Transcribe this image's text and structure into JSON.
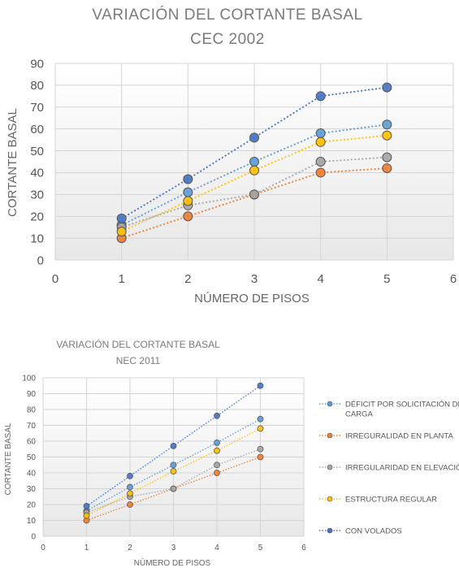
{
  "chart_data": [
    {
      "type": "line",
      "title": "VARIACIÓN DEL CORTANTE BASAL",
      "subtitle": "CEC 2002",
      "xlabel": "NÚMERO DE PISOS",
      "ylabel": "CORTANTE BASAL",
      "xlim": [
        0,
        6
      ],
      "ylim": [
        0,
        90
      ],
      "xticks": [
        "0",
        "1",
        "2",
        "3",
        "4",
        "5",
        "6"
      ],
      "yticks": [
        "0",
        "10",
        "20",
        "30",
        "40",
        "50",
        "60",
        "70",
        "80",
        "90"
      ],
      "grid": true,
      "x": [
        1,
        2,
        3,
        4,
        5
      ],
      "series": [
        {
          "values": [
            16,
            31,
            45,
            58,
            62
          ],
          "color": "#5b9bd5"
        },
        {
          "values": [
            10,
            20,
            30,
            40,
            42
          ],
          "color": "#ed7d31"
        },
        {
          "values": [
            15,
            25,
            30,
            45,
            47
          ],
          "color": "#a5a5a5"
        },
        {
          "values": [
            13,
            27,
            41,
            54,
            57
          ],
          "color": "#ffc000"
        },
        {
          "values": [
            19,
            37,
            56,
            75,
            79
          ],
          "color": "#4472c4"
        }
      ]
    },
    {
      "type": "line",
      "title": "VARIACIÓN DEL CORTANTE BASAL",
      "subtitle": "NEC 2011",
      "xlabel": "NÚMERO DE PISOS",
      "ylabel": "CORTANTE BASAL",
      "xlim": [
        0,
        6
      ],
      "ylim": [
        0,
        100
      ],
      "xticks": [
        "0",
        "1",
        "2",
        "3",
        "4",
        "5",
        "6"
      ],
      "yticks": [
        "0",
        "10",
        "20",
        "30",
        "40",
        "50",
        "60",
        "70",
        "80",
        "90",
        "100"
      ],
      "grid": true,
      "legend_position": "right",
      "x": [
        1,
        2,
        3,
        4,
        5
      ],
      "series": [
        {
          "name": "DÉFICIT POR SOLICITACIÓN DE CARGA",
          "values": [
            16,
            31,
            45,
            59,
            74
          ],
          "color": "#5b9bd5"
        },
        {
          "name": "IRREGURALIDAD EN PLANTA",
          "values": [
            10,
            20,
            30,
            40,
            50
          ],
          "color": "#ed7d31"
        },
        {
          "name": "IRREGULARIDAD EN ELEVACIÓN",
          "values": [
            15,
            25,
            30,
            45,
            55
          ],
          "color": "#a5a5a5"
        },
        {
          "name": "ESTRUCTURA REGULAR",
          "values": [
            13,
            27,
            41,
            54,
            68
          ],
          "color": "#ffc000"
        },
        {
          "name": "CON VOLADOS",
          "values": [
            19,
            38,
            57,
            76,
            95
          ],
          "color": "#4472c4"
        }
      ]
    }
  ]
}
